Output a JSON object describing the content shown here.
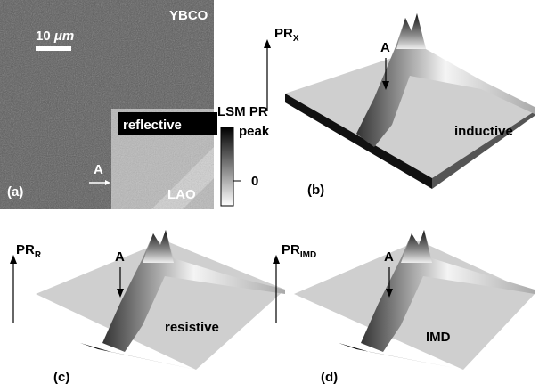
{
  "panels": [
    {
      "label": "(a)",
      "scale_bar": {
        "number": "10",
        "unit": "μm"
      },
      "film": "YBCO",
      "substrate": "LAO",
      "region": "reflective",
      "marker": "A",
      "colorbar": {
        "title": "LSM PR",
        "top": "peak",
        "bottom": "0"
      }
    },
    {
      "label": "(b)",
      "axis": {
        "main": "PR",
        "sub": "X"
      },
      "marker": "A",
      "name": "inductive"
    },
    {
      "label": "(c)",
      "axis": {
        "main": "PR",
        "sub": "R"
      },
      "marker": "A",
      "name": "resistive"
    },
    {
      "label": "(d)",
      "axis": {
        "main": "PR",
        "sub": "IMD"
      },
      "marker": "A",
      "name": "IMD"
    }
  ]
}
